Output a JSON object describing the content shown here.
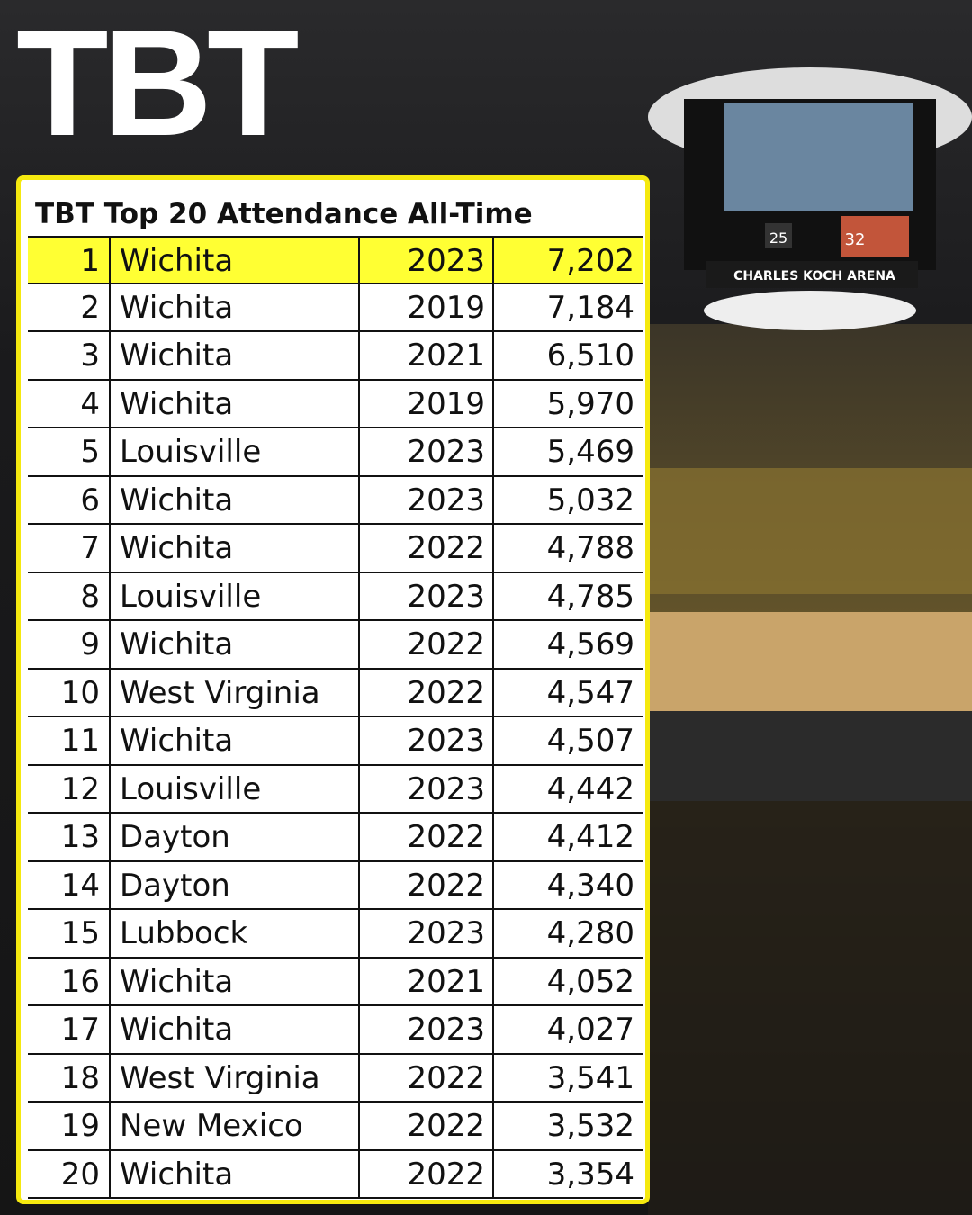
{
  "logo": "TBT",
  "arena": {
    "sign": "CHARLES KOCH ARENA",
    "score_home": "25",
    "score_away": "32"
  },
  "table": {
    "title": "TBT Top 20 Attendance All-Time",
    "rows": [
      [
        1,
        "Wichita",
        2023,
        "7,202"
      ],
      [
        2,
        "Wichita",
        2019,
        "7,184"
      ],
      [
        3,
        "Wichita",
        2021,
        "6,510"
      ],
      [
        4,
        "Wichita",
        2019,
        "5,970"
      ],
      [
        5,
        "Louisville",
        2023,
        "5,469"
      ],
      [
        6,
        "Wichita",
        2023,
        "5,032"
      ],
      [
        7,
        "Wichita",
        2022,
        "4,788"
      ],
      [
        8,
        "Louisville",
        2023,
        "4,785"
      ],
      [
        9,
        "Wichita",
        2022,
        "4,569"
      ],
      [
        10,
        "West Virginia",
        2022,
        "4,547"
      ],
      [
        11,
        "Wichita",
        2023,
        "4,507"
      ],
      [
        12,
        "Louisville",
        2023,
        "4,442"
      ],
      [
        13,
        "Dayton",
        2022,
        "4,412"
      ],
      [
        14,
        "Dayton",
        2022,
        "4,340"
      ],
      [
        15,
        "Lubbock",
        2023,
        "4,280"
      ],
      [
        16,
        "Wichita",
        2021,
        "4,052"
      ],
      [
        17,
        "Wichita",
        2023,
        "4,027"
      ],
      [
        18,
        "West Virginia",
        2022,
        "3,541"
      ],
      [
        19,
        "New Mexico",
        2022,
        "3,532"
      ],
      [
        20,
        "Wichita",
        2022,
        "3,354"
      ]
    ]
  }
}
